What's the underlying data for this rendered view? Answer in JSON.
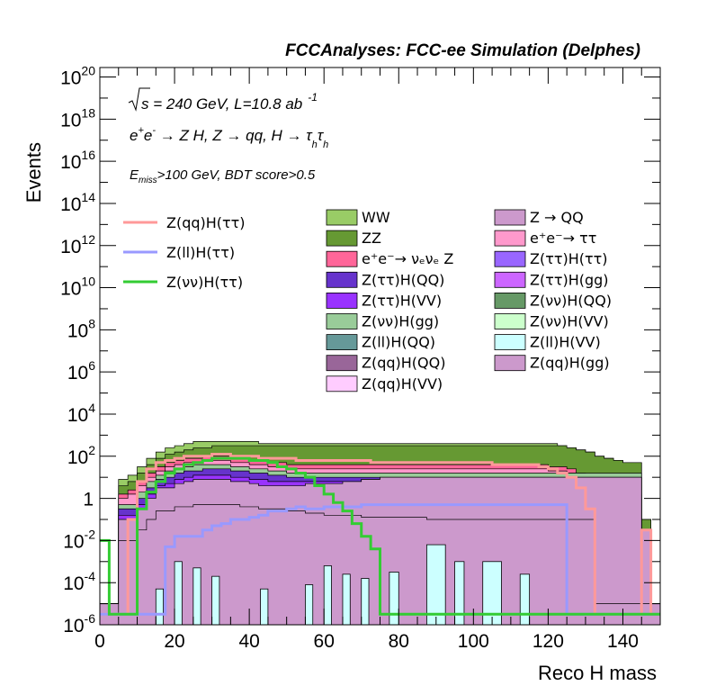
{
  "chart_data": {
    "type": "area",
    "title": "FCCAnalyses: FCC-ee Simulation (Delphes)",
    "xlabel": "Reco H mass",
    "ylabel": "Events",
    "xlim": [
      0,
      150
    ],
    "ylim": [
      1e-06,
      3e+20
    ],
    "y_log_scale": true,
    "x_ticks": [
      "0",
      "20",
      "40",
      "60",
      "80",
      "100",
      "120",
      "140"
    ],
    "y_ticks": [
      {
        "base": "10",
        "exp": "-6"
      },
      {
        "base": "10",
        "exp": "-4"
      },
      {
        "base": "10",
        "exp": "-2"
      },
      {
        "base": "1",
        "exp": ""
      },
      {
        "base": "10",
        "exp": "2"
      },
      {
        "base": "10",
        "exp": "4"
      },
      {
        "base": "10",
        "exp": "6"
      },
      {
        "base": "10",
        "exp": "8"
      },
      {
        "base": "10",
        "exp": "10"
      },
      {
        "base": "10",
        "exp": "12"
      },
      {
        "base": "10",
        "exp": "14"
      },
      {
        "base": "10",
        "exp": "16"
      },
      {
        "base": "10",
        "exp": "18"
      },
      {
        "base": "10",
        "exp": "20"
      }
    ],
    "annotations": {
      "energy_sqrt": "s",
      "energy_rest": " = 240 GeV, L=10.8 ab",
      "energy_exp": "-1",
      "process_a": "e",
      "process_a_sup": "+",
      "process_b": "e",
      "process_b_sup": "-",
      "process_c": " → Z H, Z  → qq, H  → τ",
      "process_c_sub": "h",
      "process_d": "τ",
      "process_d_sub": "h",
      "selection_main": "E",
      "selection_sub": "miss",
      "selection_rest": ">100 GeV, BDT score>0.5"
    },
    "signal_legend": [
      {
        "label": "Z(qq)H(ττ)",
        "color": "#ff9999"
      },
      {
        "label": "Z(ll)H(ττ)",
        "color": "#9999ff"
      },
      {
        "label": "Z(νν)H(ττ)",
        "color": "#33cc33"
      }
    ],
    "background_legend": [
      {
        "label": "WW",
        "color": "#99cc66"
      },
      {
        "label": "Z → QQ",
        "color": "#cc99cc"
      },
      {
        "label": "ZZ",
        "color": "#669933"
      },
      {
        "label": "e⁺e⁻→ ττ",
        "color": "#ff99cc"
      },
      {
        "label": "e⁺e⁻→ νₑνₑ Z",
        "color": "#ff6699"
      },
      {
        "label": "Z(ττ)H(ττ)",
        "color": "#9966ff"
      },
      {
        "label": "Z(ττ)H(QQ)",
        "color": "#6633cc"
      },
      {
        "label": "Z(ττ)H(gg)",
        "color": "#cc66ff"
      },
      {
        "label": "Z(ττ)H(VV)",
        "color": "#9933ff"
      },
      {
        "label": "Z(νν)H(QQ)",
        "color": "#669966"
      },
      {
        "label": "Z(νν)H(gg)",
        "color": "#99cc99"
      },
      {
        "label": "Z(νν)H(VV)",
        "color": "#ccffcc"
      },
      {
        "label": "Z(ll)H(QQ)",
        "color": "#669999"
      },
      {
        "label": "Z(ll)H(VV)",
        "color": "#ccffff"
      },
      {
        "label": "Z(qq)H(QQ)",
        "color": "#996699"
      },
      {
        "label": "Z(qq)H(gg)",
        "color": "#cc99cc"
      },
      {
        "label": "Z(qq)H(VV)",
        "color": "#ffccff"
      }
    ],
    "stack_bin_width": 2.5,
    "stack_layers": [
      {
        "name": "Z(qq)H(gg)",
        "color": "#cc99cc",
        "log10_values": [
          -5.5,
          -5.5,
          -2.0,
          -2.0,
          -1.5,
          -1.0,
          -0.6,
          -0.6,
          -0.4,
          -0.4,
          -0.3,
          -0.3,
          -0.3,
          -0.3,
          -0.3,
          -0.4,
          -0.4,
          -0.5,
          -0.5,
          -0.5,
          -0.6,
          -0.6,
          -0.7,
          -0.7,
          -0.8,
          -0.8,
          -0.8,
          -0.8,
          -0.9,
          -0.9,
          -0.9,
          -0.9,
          -0.9,
          -0.9,
          -0.9,
          -1.0,
          -1.0,
          -1.0,
          -1.0,
          -1.0,
          -1.0,
          -1.0,
          -1.0,
          -1.0,
          -1.0,
          -1.0,
          -1.0,
          -1.0,
          -1.0,
          -1.0,
          -1.0,
          -1.0,
          -1.0,
          -5.0,
          -5.0,
          -5.0,
          -5.0,
          -5.0,
          -5.0,
          -5.0
        ]
      },
      {
        "name": "Z → QQ",
        "color": "#cc99cc",
        "log10_values": [
          -5.0,
          -5.0,
          -1.0,
          -1.0,
          -0.5,
          0.0,
          0.5,
          0.5,
          0.7,
          0.8,
          0.9,
          0.9,
          0.9,
          0.9,
          0.8,
          0.8,
          0.7,
          0.6,
          0.6,
          0.6,
          0.6,
          0.6,
          0.7,
          0.7,
          0.7,
          0.7,
          0.8,
          0.8,
          0.9,
          0.9,
          1.0,
          1.0,
          1.0,
          1.0,
          1.0,
          1.0,
          1.0,
          1.0,
          1.0,
          1.0,
          1.0,
          1.0,
          1.0,
          1.0,
          1.0,
          1.0,
          1.0,
          1.0,
          1.0,
          1.0,
          1.0,
          1.0,
          1.0,
          1.0,
          1.0,
          1.0,
          1.0,
          1.0,
          -1.5,
          -5.0
        ]
      },
      {
        "name": "Z(ττ)H(VV)",
        "color": "#9933ff",
        "log10_values": [
          -5.0,
          -5.0,
          -0.8,
          -0.8,
          -0.3,
          0.2,
          0.6,
          0.7,
          0.9,
          1.0,
          1.1,
          1.1,
          1.1,
          1.1,
          1.0,
          1.0,
          0.9,
          0.9,
          0.8,
          0.8,
          0.8,
          0.8,
          0.8,
          0.8,
          0.8,
          0.8,
          0.8,
          0.8,
          0.9,
          0.9,
          1.0,
          1.0,
          1.0,
          1.0,
          1.0,
          1.0,
          1.0,
          1.0,
          1.0,
          1.0,
          1.0,
          1.0,
          1.0,
          1.0,
          1.0,
          1.0,
          1.0,
          1.0,
          1.0,
          1.0,
          1.0,
          1.0,
          1.0,
          1.0,
          1.0,
          1.0,
          1.0,
          1.0,
          -1.5,
          -5.0
        ]
      },
      {
        "name": "Z(ττ)H(QQ)",
        "color": "#6633cc",
        "log10_values": [
          -5.0,
          -5.0,
          -0.5,
          -0.5,
          0.0,
          0.5,
          0.9,
          1.0,
          1.2,
          1.3,
          1.3,
          1.4,
          1.4,
          1.4,
          1.3,
          1.3,
          1.2,
          1.2,
          1.1,
          1.1,
          1.0,
          1.0,
          1.0,
          1.0,
          1.0,
          1.0,
          1.0,
          1.0,
          1.0,
          1.0,
          1.0,
          1.0,
          1.0,
          1.0,
          1.0,
          1.0,
          1.0,
          1.0,
          1.0,
          1.0,
          1.0,
          1.0,
          1.0,
          1.0,
          1.0,
          1.0,
          1.0,
          1.0,
          1.0,
          1.0,
          1.0,
          1.0,
          1.0,
          1.0,
          1.0,
          1.0,
          1.0,
          1.0,
          -1.5,
          -5.0
        ]
      },
      {
        "name": "Z(νν)H(gg)",
        "color": "#99cc99",
        "log10_values": [
          -5.0,
          -5.0,
          -0.3,
          -0.3,
          0.3,
          0.8,
          1.1,
          1.3,
          1.4,
          1.5,
          1.6,
          1.6,
          1.6,
          1.6,
          1.5,
          1.5,
          1.4,
          1.4,
          1.3,
          1.3,
          1.2,
          1.2,
          1.2,
          1.2,
          1.2,
          1.2,
          1.2,
          1.2,
          1.2,
          1.2,
          1.2,
          1.2,
          1.2,
          1.2,
          1.2,
          1.2,
          1.2,
          1.2,
          1.2,
          1.2,
          1.2,
          1.2,
          1.2,
          1.2,
          1.2,
          1.2,
          1.2,
          1.2,
          1.2,
          1.2,
          1.2,
          1.2,
          1.2,
          1.2,
          1.2,
          1.2,
          1.2,
          1.2,
          -1.5,
          -5.0
        ]
      },
      {
        "name": "e⁺e⁻→ ττ",
        "color": "#ff99cc",
        "log10_values": [
          -5.0,
          -5.0,
          0.0,
          0.2,
          0.6,
          1.0,
          1.3,
          1.5,
          1.6,
          1.7,
          1.7,
          1.8,
          1.8,
          1.8,
          1.7,
          1.7,
          1.6,
          1.6,
          1.5,
          1.5,
          1.4,
          1.4,
          1.4,
          1.4,
          1.4,
          1.4,
          1.4,
          1.4,
          1.4,
          1.4,
          1.4,
          1.4,
          1.4,
          1.4,
          1.4,
          1.4,
          1.4,
          1.4,
          1.4,
          1.4,
          1.4,
          1.4,
          1.4,
          1.4,
          1.4,
          1.4,
          1.4,
          1.4,
          1.3,
          1.3,
          1.2,
          1.0,
          0.8,
          0.6,
          0.4,
          0.2,
          0.0,
          0.0,
          -1.5,
          -5.0
        ]
      },
      {
        "name": "e⁺e⁻→ νₑνₑ Z",
        "color": "#ff6699",
        "log10_values": [
          -5.0,
          -5.0,
          0.2,
          0.4,
          0.8,
          1.2,
          1.5,
          1.7,
          1.8,
          1.9,
          1.9,
          2.0,
          2.0,
          2.0,
          1.9,
          1.9,
          1.8,
          1.8,
          1.7,
          1.7,
          1.6,
          1.6,
          1.6,
          1.6,
          1.6,
          1.6,
          1.6,
          1.6,
          1.6,
          1.6,
          1.6,
          1.6,
          1.6,
          1.6,
          1.6,
          1.6,
          1.6,
          1.6,
          1.6,
          1.6,
          1.6,
          1.6,
          1.6,
          1.6,
          1.6,
          1.6,
          1.6,
          1.6,
          1.5,
          1.5,
          1.4,
          1.2,
          1.0,
          0.8,
          0.6,
          0.4,
          0.2,
          0.2,
          -1.5,
          -5.0
        ]
      },
      {
        "name": "ZZ",
        "color": "#669933",
        "log10_values": [
          -5.0,
          -5.0,
          0.6,
          0.8,
          1.2,
          1.6,
          1.9,
          2.1,
          2.2,
          2.3,
          2.4,
          2.4,
          2.5,
          2.5,
          2.5,
          2.5,
          2.5,
          2.5,
          2.5,
          2.5,
          2.5,
          2.5,
          2.5,
          2.5,
          2.5,
          2.5,
          2.5,
          2.5,
          2.5,
          2.5,
          2.5,
          2.5,
          2.5,
          2.5,
          2.5,
          2.5,
          2.5,
          2.5,
          2.5,
          2.5,
          2.5,
          2.5,
          2.5,
          2.5,
          2.5,
          2.5,
          2.5,
          2.5,
          2.5,
          2.5,
          2.4,
          2.3,
          2.2,
          2.0,
          1.9,
          1.8,
          1.7,
          1.7,
          -1.0,
          -5.0
        ]
      },
      {
        "name": "WW",
        "color": "#99cc66",
        "log10_values": [
          -5.0,
          -5.0,
          0.9,
          1.1,
          1.5,
          1.9,
          2.2,
          2.4,
          2.5,
          2.6,
          2.7,
          2.7,
          2.7,
          2.7,
          2.7,
          2.7,
          2.7,
          2.6,
          2.6,
          2.6,
          2.6,
          2.6,
          2.6,
          2.6,
          2.6,
          2.6,
          2.6,
          2.6,
          2.6,
          2.6,
          2.6,
          2.6,
          2.6,
          2.6,
          2.6,
          2.6,
          2.6,
          2.6,
          2.6,
          2.6,
          2.6,
          2.6,
          2.6,
          2.6,
          2.6,
          2.6,
          2.6,
          2.6,
          2.6,
          2.5,
          2.4,
          2.3,
          2.2,
          2.0,
          1.9,
          1.8,
          1.7,
          1.7,
          -1.0,
          -5.0
        ]
      }
    ],
    "signal_bin_width": 2.5,
    "signal_lines": [
      {
        "name": "Z(qq)H(ττ)",
        "color": "#ff9999",
        "log10_values": [
          -5.5,
          -5.5,
          -5.5,
          -1.0,
          0.8,
          1.4,
          1.7,
          1.8,
          1.9,
          2.0,
          2.0,
          2.0,
          2.1,
          2.1,
          2.0,
          2.0,
          2.0,
          1.9,
          1.9,
          1.9,
          1.9,
          1.8,
          1.8,
          1.8,
          1.8,
          1.8,
          1.8,
          1.8,
          1.8,
          1.7,
          1.7,
          1.7,
          1.7,
          1.7,
          1.7,
          1.7,
          1.7,
          1.7,
          1.7,
          1.7,
          1.7,
          1.7,
          1.6,
          1.6,
          1.6,
          1.6,
          1.6,
          1.5,
          1.4,
          1.2,
          1.0,
          0.5,
          -0.5,
          -5.5,
          -5.5,
          -5.5,
          -5.5,
          -5.5,
          -1.5,
          -5.5
        ]
      },
      {
        "name": "Z(ll)H(ττ)",
        "color": "#9999ff",
        "log10_values": [
          -5.5,
          -5.5,
          -5.5,
          -5.5,
          -5.5,
          -5.5,
          -5.5,
          -2.3,
          -1.8,
          -1.8,
          -1.8,
          -1.5,
          -1.3,
          -1.2,
          -1.0,
          -1.0,
          -0.9,
          -0.8,
          -0.6,
          -0.6,
          -0.5,
          -0.4,
          -0.5,
          -0.5,
          -0.4,
          -0.4,
          -0.4,
          -0.4,
          -0.3,
          -0.3,
          -0.3,
          -0.3,
          -0.3,
          -0.3,
          -0.3,
          -0.3,
          -0.3,
          -0.3,
          -0.3,
          -0.3,
          -0.3,
          -0.3,
          -0.3,
          -0.3,
          -0.3,
          -0.3,
          -0.3,
          -0.3,
          -0.3,
          -0.3,
          -5.5,
          -5.5,
          -5.5,
          -5.5,
          -5.5,
          -5.5,
          -5.5,
          -5.5,
          -5.5,
          -5.5
        ]
      },
      {
        "name": "Z(νν)H(ττ)",
        "color": "#33cc33",
        "log10_values": [
          -2.0,
          -5.5,
          -5.5,
          -5.5,
          -0.5,
          0.3,
          0.8,
          1.2,
          1.4,
          1.6,
          1.7,
          1.8,
          1.9,
          1.9,
          1.9,
          1.9,
          1.8,
          1.8,
          1.7,
          1.5,
          1.4,
          1.2,
          1.0,
          0.6,
          0.2,
          -0.2,
          -0.6,
          -1.2,
          -1.8,
          -2.4,
          -5.5,
          -5.5,
          -5.5,
          -5.5,
          -5.5,
          -5.5,
          -5.5,
          -5.5,
          -5.5,
          -5.5,
          -5.5,
          -5.5,
          -5.5,
          -5.5,
          -5.5,
          -5.5,
          -5.5,
          -5.5,
          -5.5,
          -5.5,
          -5.5,
          -5.5,
          -5.5,
          -5.5,
          -5.5,
          -5.5,
          -5.5,
          -5.5,
          -5.5,
          -5.5
        ]
      }
    ],
    "lower_bars": {
      "name": "Z(ll)H(VV)",
      "color": "#ccffff",
      "edge": "#000000",
      "bins": [
        {
          "x0": 15,
          "x1": 17,
          "log10": -4.3
        },
        {
          "x0": 20,
          "x1": 22,
          "log10": -3.0
        },
        {
          "x0": 25,
          "x1": 27,
          "log10": -3.3
        },
        {
          "x0": 30,
          "x1": 32,
          "log10": -3.7
        },
        {
          "x0": 43,
          "x1": 45,
          "log10": -4.3
        },
        {
          "x0": 55,
          "x1": 57,
          "log10": -4.1
        },
        {
          "x0": 60,
          "x1": 62,
          "log10": -3.2
        },
        {
          "x0": 65,
          "x1": 67,
          "log10": -3.6
        },
        {
          "x0": 70,
          "x1": 72,
          "log10": -3.8
        },
        {
          "x0": 77.5,
          "x1": 80,
          "log10": -3.5
        },
        {
          "x0": 87.5,
          "x1": 92.5,
          "log10": -2.2
        },
        {
          "x0": 95,
          "x1": 97.5,
          "log10": -3.0
        },
        {
          "x0": 102.5,
          "x1": 107.5,
          "log10": -3.0
        },
        {
          "x0": 112.5,
          "x1": 115,
          "log10": -3.6
        }
      ]
    },
    "grid": false,
    "legend_position": "top"
  }
}
